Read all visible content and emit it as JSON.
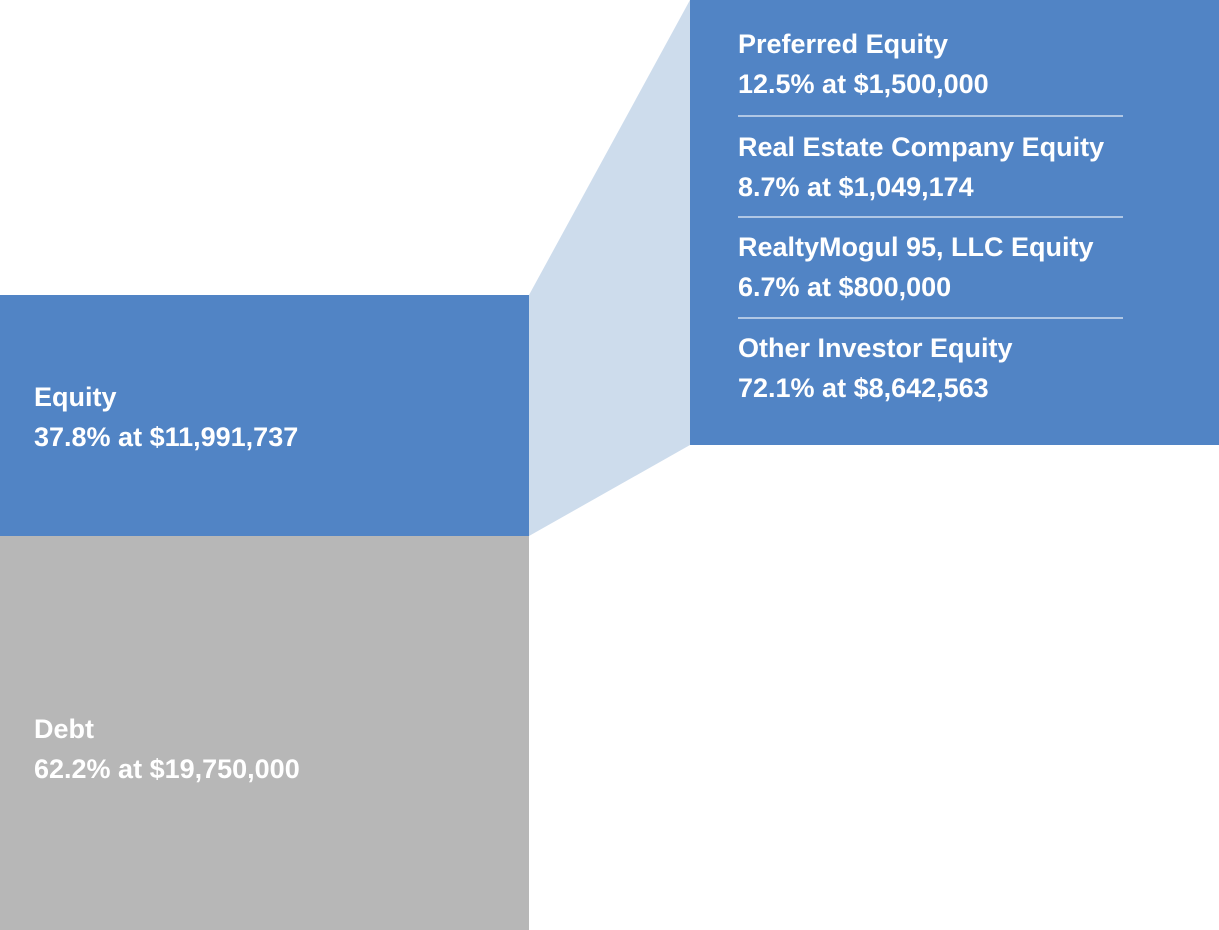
{
  "chart_data": {
    "type": "bar",
    "stacked_bar": {
      "segments": [
        {
          "name": "Debt",
          "percent": 62.2,
          "amount": "$19,750,000",
          "label_line1": "Debt",
          "label_line2": "62.2% at $19,750,000",
          "color": "#b7b7b7"
        },
        {
          "name": "Equity",
          "percent": 37.8,
          "amount": "$11,991,737",
          "label_line1": "Equity",
          "label_line2": "37.8% at $11,991,737",
          "color": "#5184c5"
        }
      ]
    },
    "equity_breakdown": {
      "color": "#5184c5",
      "connector_color": "#cddcec",
      "items": [
        {
          "name": "Preferred Equity",
          "percent": 12.5,
          "amount": "$1,500,000",
          "label_line1": "Preferred Equity",
          "label_line2": "12.5% at $1,500,000"
        },
        {
          "name": "Real Estate Company Equity",
          "percent": 8.7,
          "amount": "$1,049,174",
          "label_line1": "Real Estate Company Equity",
          "label_line2": "8.7% at $1,049,174"
        },
        {
          "name": "RealtyMogul 95, LLC Equity",
          "percent": 6.7,
          "amount": "$800,000",
          "label_line1": "RealtyMogul 95, LLC Equity",
          "label_line2": "6.7% at $800,000"
        },
        {
          "name": "Other Investor Equity",
          "percent": 72.1,
          "amount": "$8,642,563",
          "label_line1": "Other Investor Equity",
          "label_line2": "72.1% at $8,642,563"
        }
      ]
    }
  }
}
